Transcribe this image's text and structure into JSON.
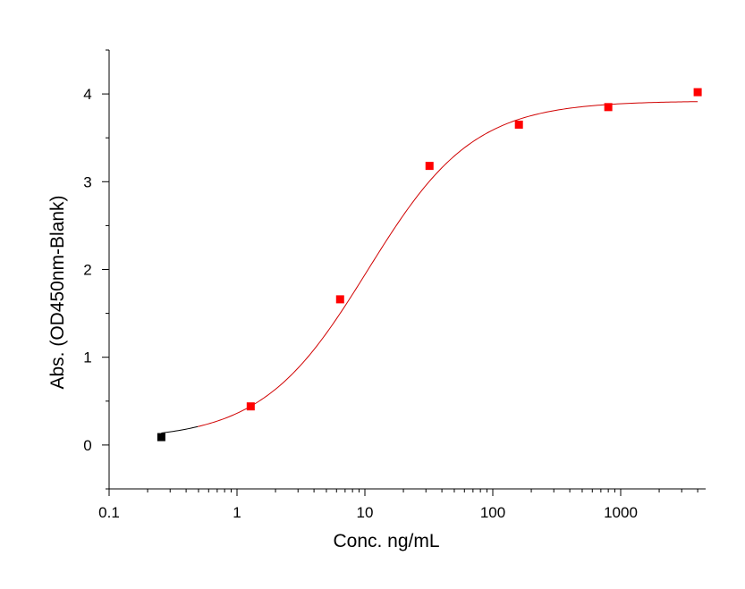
{
  "chart_data": {
    "type": "scatter",
    "xlabel": "Conc. ng/mL",
    "ylabel": "Abs. (OD450nm-Blank)",
    "x_scale": "log",
    "xlim": [
      0.1,
      4500
    ],
    "ylim": [
      -0.5,
      4.5
    ],
    "x_ticks": [
      0.1,
      1,
      10,
      100,
      1000
    ],
    "x_tick_labels": [
      "0.1",
      "1",
      "10",
      "100",
      "1000"
    ],
    "y_ticks": [
      0,
      1,
      2,
      3,
      4
    ],
    "y_tick_labels": [
      "0",
      "1",
      "2",
      "3",
      "4"
    ],
    "grid": false,
    "legend": "none",
    "series": [
      {
        "marker": "square",
        "color": "#ff0000",
        "x": [
          1.28,
          6.4,
          32,
          160,
          800,
          4000
        ],
        "y": [
          0.44,
          1.66,
          3.18,
          3.65,
          3.85,
          4.02
        ]
      },
      {
        "marker": "square",
        "color": "#000000",
        "x": [
          0.256
        ],
        "y": [
          0.09
        ]
      }
    ],
    "fit_curve": {
      "type": "4PL",
      "color": "#d00000",
      "color_low": "#000000",
      "bottom": 0.06,
      "top": 3.92,
      "ec50": 10.5,
      "hill": 1.05,
      "x_range": [
        0.256,
        4000
      ]
    }
  }
}
